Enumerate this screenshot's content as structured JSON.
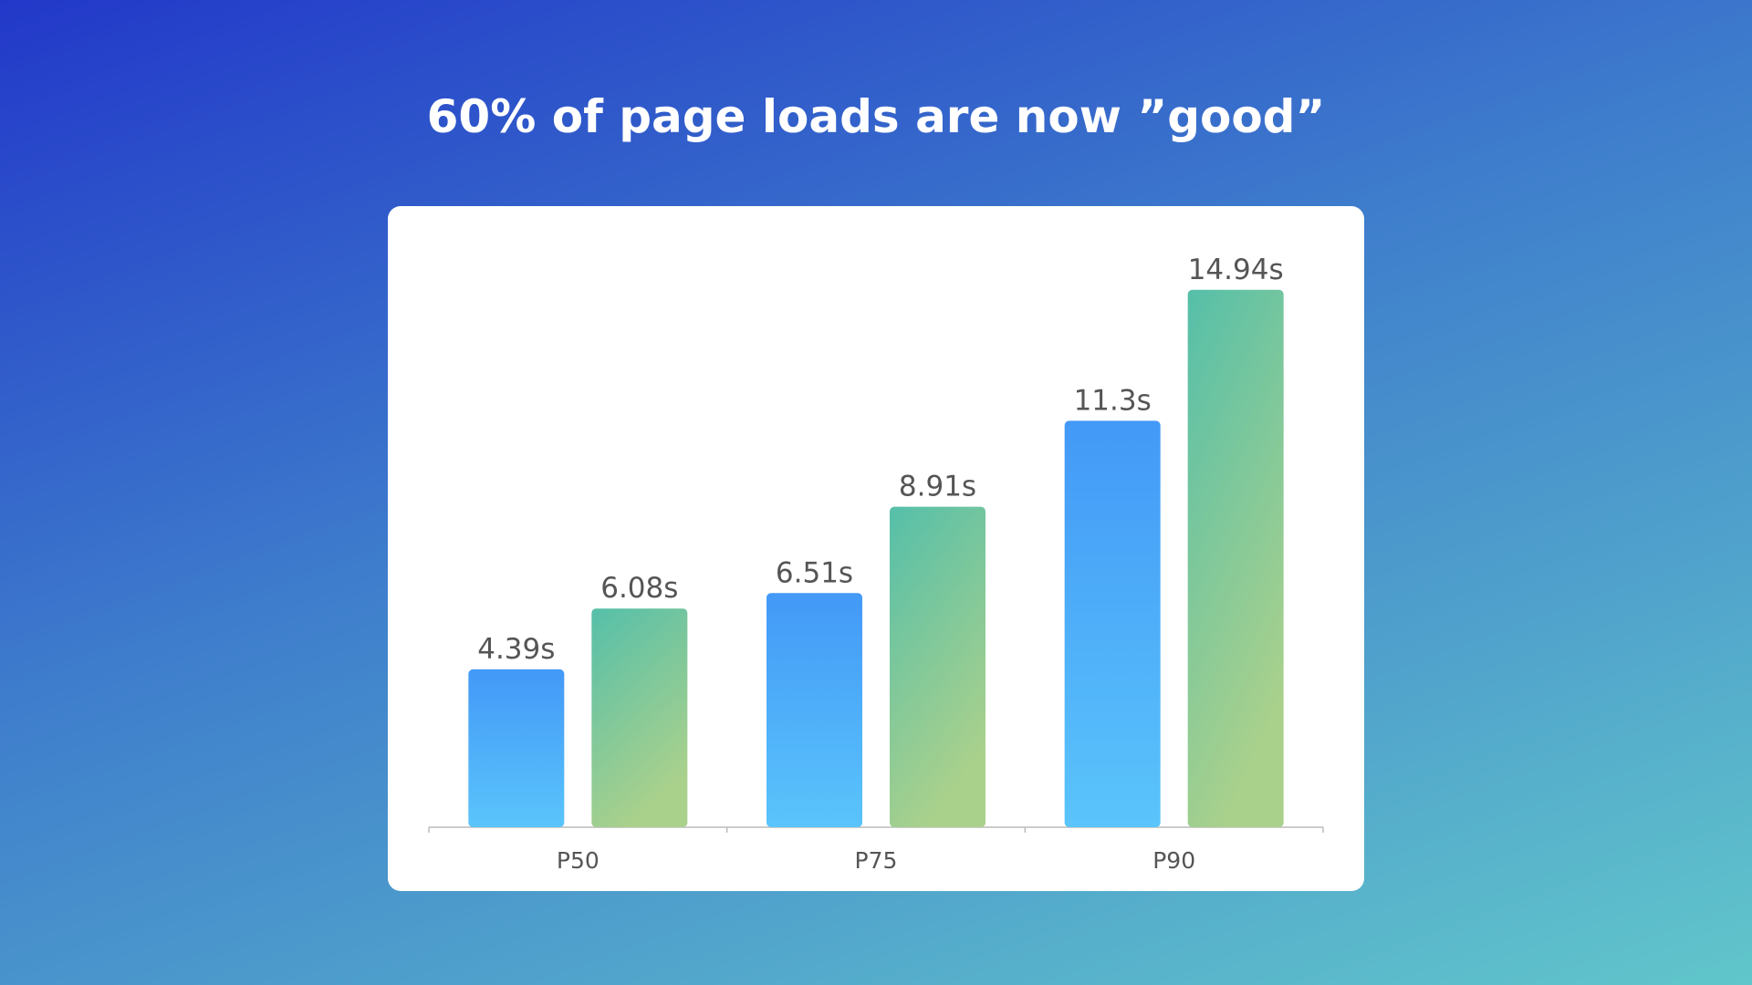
{
  "chart_data": {
    "type": "bar",
    "title": "60% of page loads are now ”good”",
    "categories": [
      "P50",
      "P75",
      "P90"
    ],
    "series": [
      {
        "color": [
          "#4399f7",
          "#5ac4fb"
        ],
        "values": [
          4.39,
          6.51,
          11.3
        ],
        "value_labels": [
          "4.39s",
          "6.51s",
          "11.3s"
        ]
      },
      {
        "color": [
          "#55bfa9",
          "#aad18c"
        ],
        "values": [
          6.08,
          8.91,
          14.94
        ],
        "value_labels": [
          "6.08s",
          "8.91s",
          "14.94s"
        ]
      }
    ],
    "ylim": [
      0,
      16
    ]
  }
}
